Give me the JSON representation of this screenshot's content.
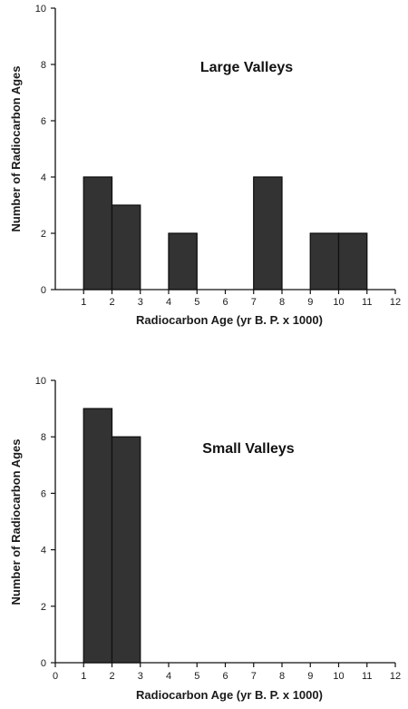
{
  "colors": {
    "bar_fill": "#333333",
    "axis": "#111111",
    "background": "#ffffff"
  },
  "chart_data": [
    {
      "type": "bar",
      "title": "Large Valleys",
      "xlabel": "Radiocarbon Age (yr B. P. x 1000)",
      "ylabel": "Number of Radiocarbon Ages",
      "xlim": [
        0,
        12
      ],
      "ylim": [
        0,
        10
      ],
      "xticks": [
        1,
        2,
        3,
        4,
        5,
        6,
        7,
        8,
        9,
        10,
        11,
        12
      ],
      "yticks": [
        0,
        2,
        4,
        6,
        8,
        10
      ],
      "bin_width": 1,
      "bars": [
        {
          "x_start": 1,
          "x_end": 2,
          "value": 4
        },
        {
          "x_start": 2,
          "x_end": 3,
          "value": 3
        },
        {
          "x_start": 4,
          "x_end": 5,
          "value": 2
        },
        {
          "x_start": 7,
          "x_end": 8,
          "value": 4
        },
        {
          "x_start": 9,
          "x_end": 10,
          "value": 2
        },
        {
          "x_start": 10,
          "x_end": 11,
          "value": 2
        }
      ],
      "grid": false
    },
    {
      "type": "bar",
      "title": "Small Valleys",
      "xlabel": "Radiocarbon Age (yr B. P. x 1000)",
      "ylabel": "Number of Radiocarbon Ages",
      "xlim": [
        0,
        12
      ],
      "ylim": [
        0,
        10
      ],
      "xticks": [
        0,
        1,
        2,
        3,
        4,
        5,
        6,
        7,
        8,
        9,
        10,
        11,
        12
      ],
      "yticks": [
        0,
        2,
        4,
        6,
        8,
        10
      ],
      "bin_width": 1,
      "bars": [
        {
          "x_start": 1,
          "x_end": 2,
          "value": 9
        },
        {
          "x_start": 2,
          "x_end": 3,
          "value": 8
        }
      ],
      "grid": false
    }
  ]
}
